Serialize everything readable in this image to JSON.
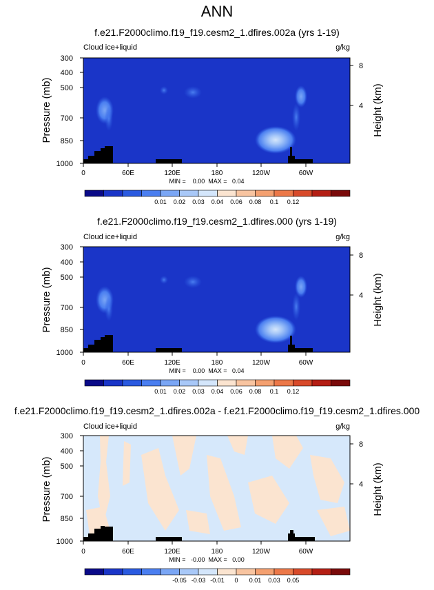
{
  "main_title": "ANN",
  "variable_label": "Cloud ice+liquid",
  "units": "g/kg",
  "left_axis_label": "Pressure (mb)",
  "right_axis_label": "Height (km)",
  "pressure_ticks": [
    "300",
    "400",
    "500",
    "700",
    "850",
    "1000"
  ],
  "height_ticks": [
    "8",
    "4"
  ],
  "lon_ticks": [
    "0",
    "60E",
    "120E",
    "180",
    "120W",
    "60W"
  ],
  "colors": {
    "ocean_fill": "#1a35c8",
    "diff_fill": "#d6e8fb",
    "terrain": "#000000"
  },
  "chart_data": [
    {
      "type": "heatmap",
      "title": "f.e21.F2000climo.f19_f19.cesm2_1.dfires.002a (yrs 1-19)",
      "stats": "MIN =    0.00  MAX =   0.04",
      "colorbar_labels": [
        "0.01",
        "0.02",
        "0.03",
        "0.04",
        "0.06",
        "0.08",
        "0.1",
        "0.12"
      ],
      "colorbar_colors": [
        "#0a0a88",
        "#1a35c8",
        "#2a5ae0",
        "#4a7ef0",
        "#7aa6f5",
        "#a8c8f8",
        "#d4e6fb",
        "#fbe4d0",
        "#f8c4a0",
        "#f4a070",
        "#ec7848",
        "#d84a2a",
        "#b41e14",
        "#7a0a0a"
      ]
    },
    {
      "type": "heatmap",
      "title": "f.e21.F2000climo.f19_f19.cesm2_1.dfires.000 (yrs 1-19)",
      "stats": "MIN =    0.00  MAX =   0.04",
      "colorbar_labels": [
        "0.01",
        "0.02",
        "0.03",
        "0.04",
        "0.06",
        "0.08",
        "0.1",
        "0.12"
      ],
      "colorbar_colors": [
        "#0a0a88",
        "#1a35c8",
        "#2a5ae0",
        "#4a7ef0",
        "#7aa6f5",
        "#a8c8f8",
        "#d4e6fb",
        "#fbe4d0",
        "#f8c4a0",
        "#f4a070",
        "#ec7848",
        "#d84a2a",
        "#b41e14",
        "#7a0a0a"
      ]
    },
    {
      "type": "heatmap",
      "title": "f.e21.F2000climo.f19_f19.cesm2_1.dfires.002a - f.e21.F2000climo.f19_f19.cesm2_1.dfires.000",
      "stats": "MIN =   -0.00  MAX =   0.00",
      "colorbar_labels": [
        "-0.05",
        "-0.03",
        "-0.01",
        "0",
        "0.01",
        "0.03",
        "0.05"
      ],
      "colorbar_colors": [
        "#0a0a88",
        "#1a35c8",
        "#2a5ae0",
        "#4a7ef0",
        "#7aa6f5",
        "#a8c8f8",
        "#d4e6fb",
        "#fbe4d0",
        "#f8c4a0",
        "#f4a070",
        "#ec7848",
        "#d84a2a",
        "#b41e14",
        "#7a0a0a"
      ]
    }
  ]
}
